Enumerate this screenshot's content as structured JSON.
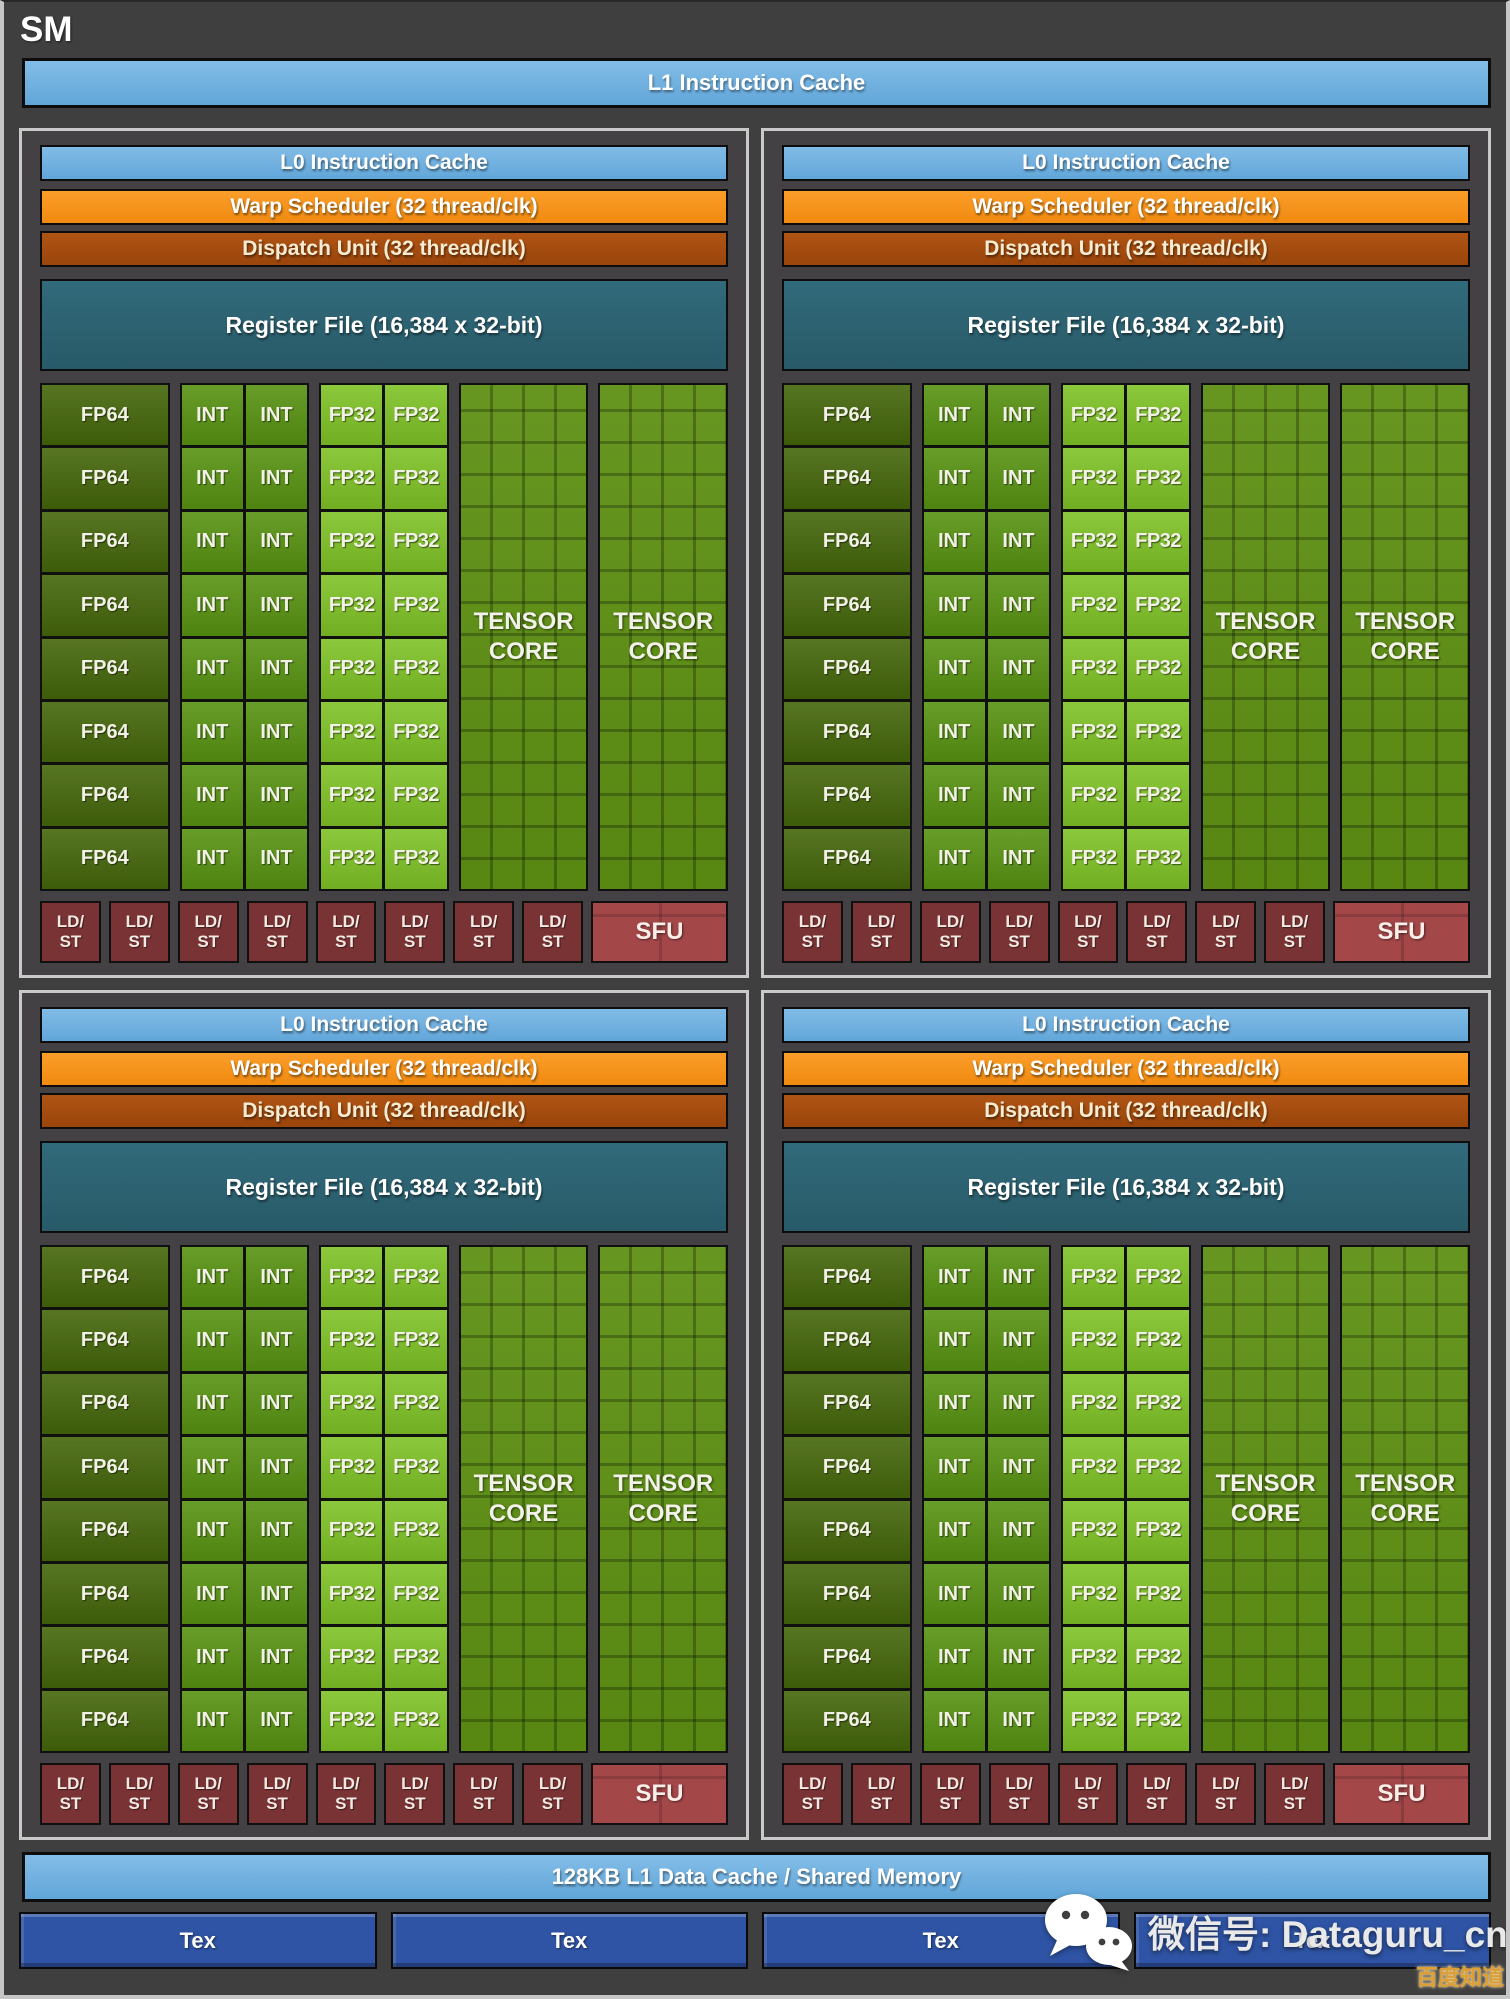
{
  "header": {
    "title": "SM",
    "l1_instruction_cache": "L1 Instruction Cache"
  },
  "partition": {
    "count": 4,
    "l0_instruction_cache": "L0 Instruction Cache",
    "warp_scheduler": "Warp Scheduler (32 thread/clk)",
    "dispatch_unit": "Dispatch Unit (32 thread/clk)",
    "register_file": "Register File (16,384 x 32-bit)",
    "core_rows": 8,
    "fp64_label": "FP64",
    "int_label": "INT",
    "fp32_label": "FP32",
    "tensor_core_count": 2,
    "tensor_core_lines": [
      "TENSOR",
      "CORE"
    ],
    "ldst_count": 8,
    "ldst_lines": [
      "LD/",
      "ST"
    ],
    "sfu_label": "SFU"
  },
  "footer": {
    "l1_data_cache": "128KB L1 Data Cache / Shared Memory",
    "tex_count": 4,
    "tex_label": "Tex"
  },
  "watermark": {
    "wechat_text": "微信号: Dataguru_cn",
    "baidu_text": "百度知道"
  },
  "colors": {
    "page_bg": "#3f3f3f",
    "panel_border": "#c9c9c9",
    "cache_blue": "#6fb1e0",
    "warp_orange": "#f7941d",
    "dispatch_brown": "#a54c10",
    "register_teal": "#2d6171",
    "fp64_green": "#44660a",
    "int_green": "#579212",
    "fp32_green": "#7fc226",
    "tensor_green": "#5d9013",
    "ldst_maroon": "#7a3335",
    "sfu_red": "#a34749",
    "tex_blue": "#2f54a5",
    "baidu_gold": "#dd9f35"
  }
}
